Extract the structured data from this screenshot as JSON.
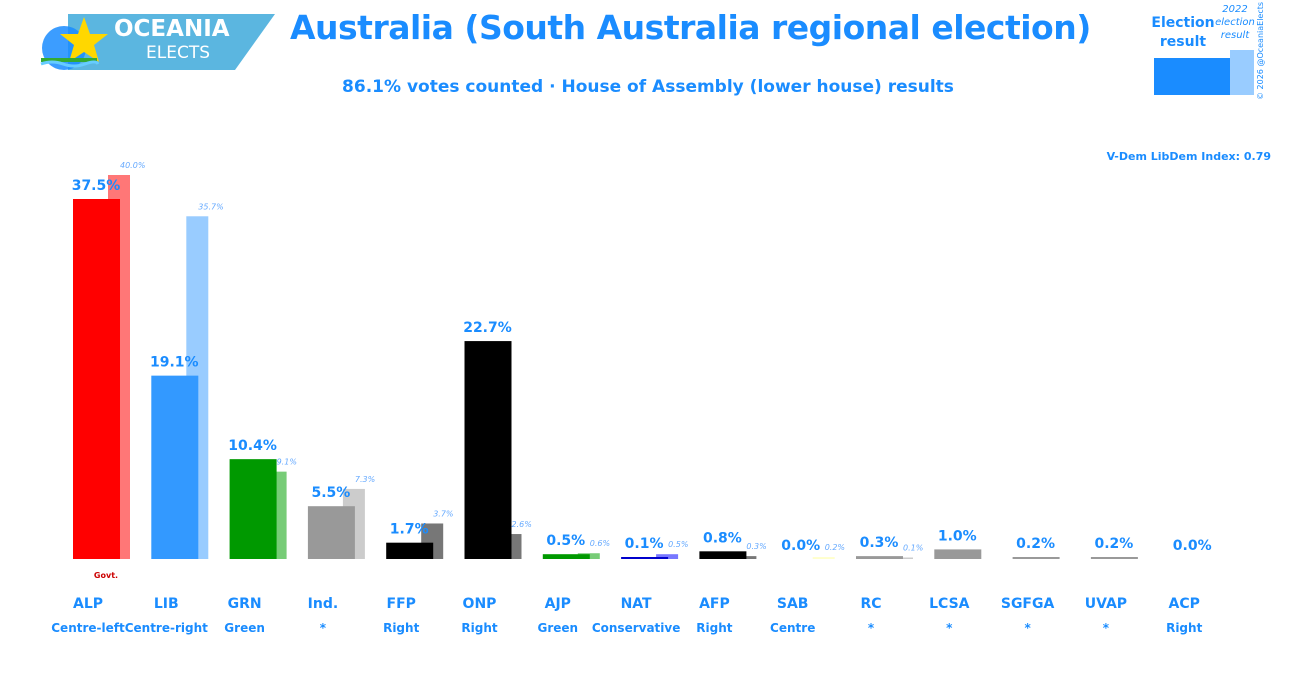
{
  "header": {
    "logo_line1": "OCEANIA",
    "logo_line2": "ELECTS",
    "title": "Australia (South Australia regional election)",
    "subtitle": "86.1% votes counted · House of Assembly (lower house) results"
  },
  "legend": {
    "result_label_line1": "Election",
    "result_label_line2": "result",
    "prev_label_line1": "2022",
    "prev_label_line2": "election",
    "prev_label_line3": "result",
    "copyright": "© 2026 @OceaniaElects"
  },
  "vdem": "V-Dem LibDem Index: 0.79",
  "colors": {
    "accent": "#1a8cff",
    "govt": "#cc0000"
  },
  "chart_data": {
    "type": "bar",
    "categories": [
      "ALP",
      "LIB",
      "GRN",
      "Ind.",
      "FFP",
      "ONP",
      "AJP",
      "NAT",
      "AFP",
      "SAB",
      "RC",
      "LCSA",
      "SGFGA",
      "UVAP",
      "ACP"
    ],
    "ideologies": [
      "Centre-left",
      "Centre-right",
      "Green",
      "*",
      "Right",
      "Right",
      "Green",
      "Conservative",
      "Right",
      "Centre",
      "*",
      "*",
      "*",
      "*",
      "Right"
    ],
    "series": [
      {
        "name": "Election result",
        "values": [
          37.5,
          19.1,
          10.4,
          5.5,
          1.7,
          22.7,
          0.5,
          0.1,
          0.8,
          0.0,
          0.3,
          1.0,
          0.2,
          0.2,
          0.0
        ]
      },
      {
        "name": "2022 election result",
        "values": [
          40.0,
          35.7,
          9.1,
          7.3,
          3.7,
          2.6,
          0.6,
          0.5,
          0.3,
          0.2,
          0.1,
          null,
          null,
          null,
          null
        ]
      }
    ],
    "value_labels": [
      "37.5%",
      "19.1%",
      "10.4%",
      "5.5%",
      "1.7%",
      "22.7%",
      "0.5%",
      "0.1%",
      "0.8%",
      "0.0%",
      "0.3%",
      "1.0%",
      "0.2%",
      "0.2%",
      "0.0%"
    ],
    "prev_labels": [
      "40.0%",
      "35.7%",
      "9.1%",
      "7.3%",
      "3.7%",
      "2.6%",
      "0.6%",
      "0.5%",
      "0.3%",
      "0.2%",
      "0.1%",
      "",
      "",
      "",
      ""
    ],
    "bar_colors": [
      "#ff0000",
      "#3399ff",
      "#009900",
      "#999999",
      "#000000",
      "#000000",
      "#009900",
      "#0000cc",
      "#000000",
      "#ffff66",
      "#999999",
      "#999999",
      "#999999",
      "#999999",
      "#999999"
    ],
    "prev_colors": [
      "#ff7777",
      "#99ccff",
      "#77cc77",
      "#cccccc",
      "#777777",
      "#777777",
      "#77cc77",
      "#7777ff",
      "#777777",
      "#ffffcc",
      "#cccccc",
      "#cccccc",
      "#cccccc",
      "#cccccc",
      "#cccccc"
    ],
    "annotation": "Govt.",
    "ylim": [
      0,
      40
    ]
  }
}
